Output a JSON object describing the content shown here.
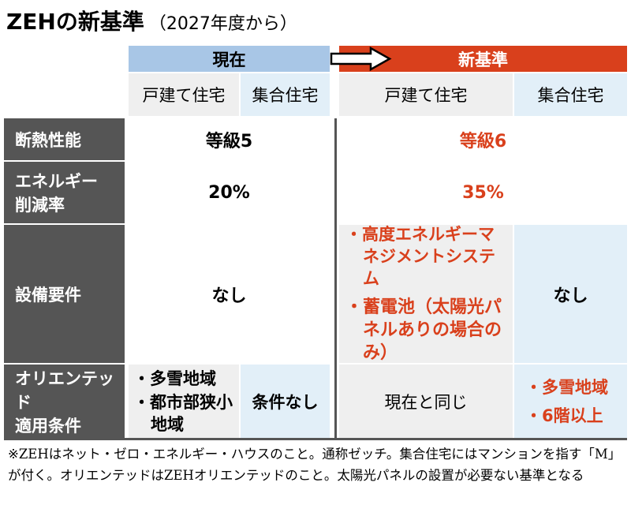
{
  "header": {
    "title": "ZEHの新基準",
    "subtitle": "（2027年度から）"
  },
  "table": {
    "groups": [
      "現在",
      "新基準"
    ],
    "subheaders": [
      "戸建て住宅",
      "集合住宅",
      "戸建て住宅",
      "集合住宅"
    ],
    "rows": [
      {
        "label": [
          "断熱性能"
        ],
        "current": "等級5",
        "new": "等級6"
      },
      {
        "label": [
          "エネルギー",
          "削減率"
        ],
        "current": "20%",
        "new": "35%"
      },
      {
        "label": [
          "設備要件"
        ],
        "current": "なし",
        "new_detached": [
          "・高度エネルギーマネジメントシステム",
          "・蓄電池（太陽光パネルありの場合のみ）"
        ],
        "new_collective": "なし"
      },
      {
        "label": [
          "オリエンテッド",
          "適用条件"
        ],
        "current_detached": [
          "・多雪地域",
          "・都市部狭小地域"
        ],
        "current_collective": "条件なし",
        "new_detached": "現在と同じ",
        "new_collective": [
          "・多雪地域",
          "・6階以上"
        ]
      }
    ]
  },
  "note": "※ZEHはネット・ゼロ・エネルギー・ハウスのこと。通称ゼッチ。集合住宅にはマンションを指す「M」が付く。オリエンテッドはZEHオリエンテッドのこと。太陽光パネルの設置が必要ない基準となる"
}
